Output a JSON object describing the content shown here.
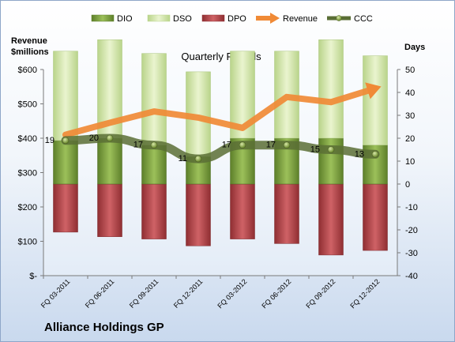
{
  "chart_data": {
    "type": "bar",
    "title": "Quarterly Periods",
    "footer": "Alliance Holdings GP",
    "left_axis_label": [
      "Revenue",
      "$millions"
    ],
    "right_axis_label": "Days",
    "left_ylim": [
      0,
      600
    ],
    "right_ylim": [
      -40,
      50
    ],
    "left_ticks": [
      "$-",
      "$100",
      "$200",
      "$300",
      "$400",
      "$500",
      "$600"
    ],
    "right_ticks": [
      "-40",
      "-30",
      "-20",
      "-10",
      "0",
      "10",
      "20",
      "30",
      "40",
      "50"
    ],
    "grid": false,
    "legend_position": "top",
    "categories": [
      "FQ 03-2011",
      "FQ 06-2011",
      "FQ 09-2011",
      "FQ 12-2011",
      "FQ 03-2012",
      "FQ 06-2012",
      "FQ 09-2012",
      "FQ 12-2012"
    ],
    "series": [
      {
        "name": "DIO",
        "axis": "right",
        "type": "stacked-bar",
        "color": "#7ea13e",
        "values": [
          19,
          20,
          17,
          12,
          20,
          20,
          20,
          17
        ]
      },
      {
        "name": "DSO",
        "axis": "right",
        "type": "stacked-bar",
        "color": "#d3e6a6",
        "values": [
          39,
          43,
          40,
          37,
          38,
          38,
          43,
          39
        ]
      },
      {
        "name": "DPO",
        "axis": "right",
        "type": "negative-bar",
        "color": "#b8484c",
        "values": [
          -21,
          -23,
          -24,
          -27,
          -24,
          -26,
          -31,
          -29
        ]
      },
      {
        "name": "Revenue",
        "axis": "left",
        "type": "line-arrow",
        "color": "#f08a36",
        "values": [
          410,
          445,
          478,
          460,
          430,
          520,
          505,
          545
        ]
      },
      {
        "name": "CCC",
        "axis": "right",
        "type": "line",
        "color": "#5a6e35",
        "values": [
          19,
          20,
          17,
          11,
          17,
          17,
          15,
          13
        ],
        "labels": [
          "19",
          "20",
          "17",
          "11",
          "17",
          "17",
          "15",
          "13"
        ]
      }
    ]
  }
}
